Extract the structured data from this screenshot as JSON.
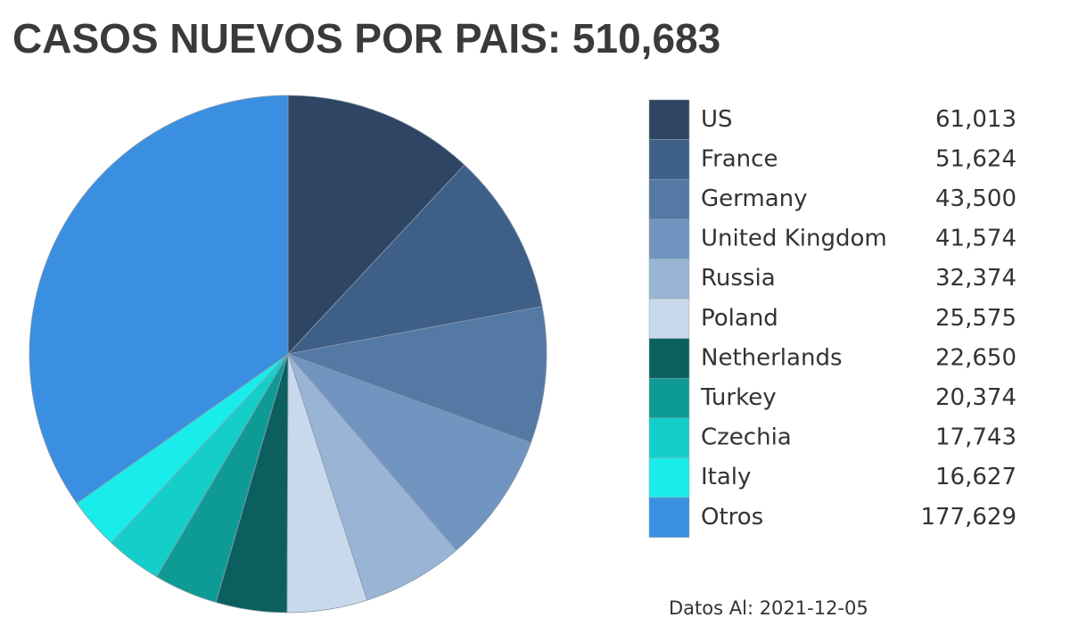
{
  "chart_data": {
    "type": "pie",
    "title": "CASOS NUEVOS POR PAIS: 510,683",
    "categories": [
      "US",
      "France",
      "Germany",
      "United Kingdom",
      "Russia",
      "Poland",
      "Netherlands",
      "Turkey",
      "Czechia",
      "Italy",
      "Otros"
    ],
    "values": [
      61013,
      51624,
      43500,
      41574,
      32374,
      25575,
      22650,
      20374,
      17743,
      16627,
      177629
    ],
    "value_labels": [
      "61,013",
      "51,624",
      "43,500",
      "41,574",
      "32,374",
      "25,575",
      "22,650",
      "20,374",
      "17,743",
      "16,627",
      "177,629"
    ],
    "colors": [
      "#2e4563",
      "#3e5f88",
      "#5479a4",
      "#7194c0",
      "#9ab4d6",
      "#c9d9ec",
      "#0b5f5e",
      "#0f9b95",
      "#14cfc9",
      "#1aebeb",
      "#3b8fe0"
    ],
    "note": "Datos Al: 2021-12-05"
  }
}
